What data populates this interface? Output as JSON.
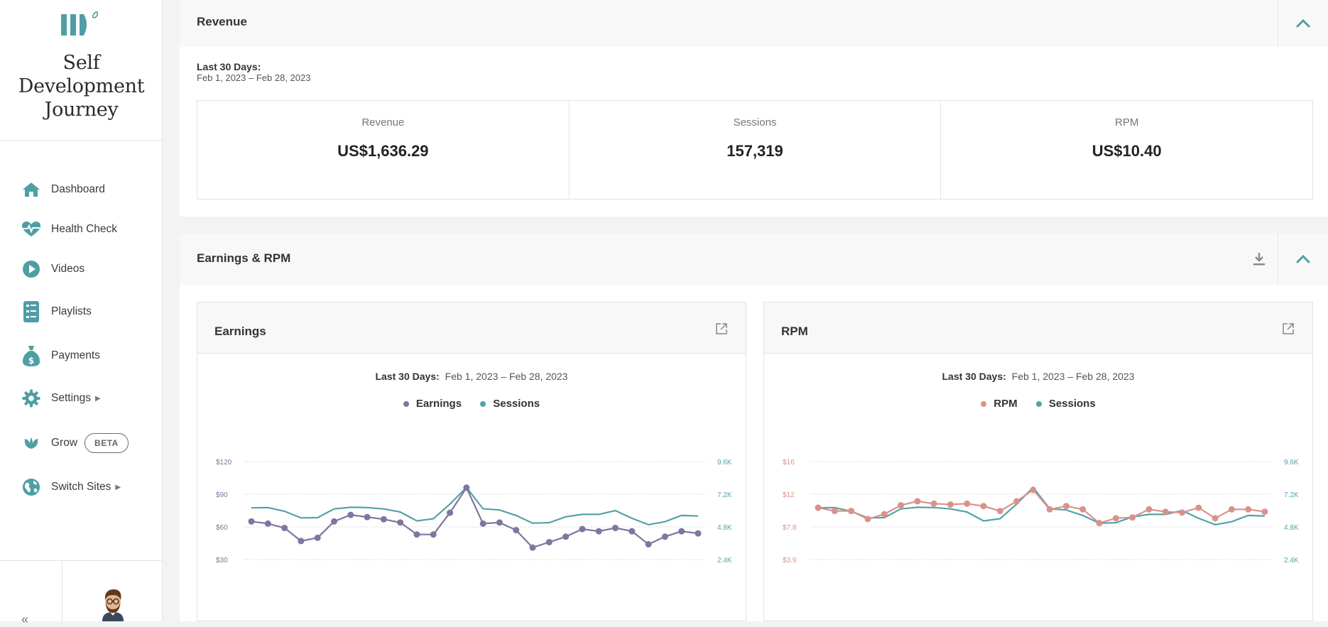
{
  "sidebar": {
    "site_name_lines": [
      "Self",
      "Development",
      "Journey"
    ],
    "nav": [
      {
        "label": "Dashboard",
        "icon": "home-icon"
      },
      {
        "label": "Health Check",
        "icon": "heartbeat-icon"
      },
      {
        "label": "Videos",
        "icon": "play-icon"
      },
      {
        "label": "Playlists",
        "icon": "list-icon"
      },
      {
        "label": "Payments",
        "icon": "money-bag-icon"
      },
      {
        "label": "Settings",
        "icon": "gear-icon",
        "has_arrow": true
      },
      {
        "label": "Grow",
        "icon": "leaf-icon",
        "badge": "BETA"
      },
      {
        "label": "Switch Sites",
        "icon": "globe-icon",
        "has_arrow": true
      }
    ],
    "collapse_glyph": "«"
  },
  "revenue_card": {
    "title": "Revenue",
    "period_label": "Last 30 Days:",
    "period_range": "Feb 1, 2023 – Feb 28, 2023",
    "kpis": [
      {
        "label": "Revenue",
        "value": "US$1,636.29"
      },
      {
        "label": "Sessions",
        "value": "157,319"
      },
      {
        "label": "RPM",
        "value": "US$10.40"
      }
    ]
  },
  "earnings_rpm_card": {
    "title": "Earnings & RPM"
  },
  "colors": {
    "accent": "#4f9ea5",
    "earnings": "#7e75a0",
    "sessions": "#52a3a8",
    "rpm": "#d9928a",
    "grid": "#d8d8d8"
  },
  "chart_data": [
    {
      "type": "line",
      "title": "Earnings",
      "subtitle_label": "Last 30 Days:",
      "subtitle_range": "Feb 1, 2023 – Feb 28, 2023",
      "x_count": 28,
      "left_axis": {
        "ticks": [
          "$120",
          "$90",
          "$60",
          "$30"
        ],
        "tick_values": [
          120,
          90,
          60,
          30
        ],
        "color": "#7e75a0"
      },
      "right_axis": {
        "ticks": [
          "9.6K",
          "7.2K",
          "4.8K",
          "2.4K"
        ],
        "tick_values": [
          9600,
          7200,
          4800,
          2400
        ],
        "color": "#52a3a8"
      },
      "grid": true,
      "series": [
        {
          "name": "Earnings",
          "axis": "left",
          "markers": true,
          "values": [
            65,
            63,
            59,
            47,
            50,
            65,
            71,
            69,
            67,
            64,
            53,
            53,
            73,
            96,
            63,
            64,
            57,
            41,
            46,
            51,
            58,
            56,
            59,
            56,
            44,
            51,
            56,
            54
          ]
        },
        {
          "name": "Sessions",
          "axis": "right",
          "markers": false,
          "values": [
            6200,
            6220,
            5950,
            5460,
            5480,
            6120,
            6240,
            6220,
            6120,
            5890,
            5240,
            5400,
            6480,
            7700,
            6130,
            6040,
            5640,
            5070,
            5110,
            5540,
            5720,
            5720,
            6000,
            5430,
            4960,
            5180,
            5640,
            5600
          ]
        }
      ]
    },
    {
      "type": "line",
      "title": "RPM",
      "subtitle_label": "Last 30 Days:",
      "subtitle_range": "Feb 1, 2023 – Feb 28, 2023",
      "x_count": 28,
      "left_axis": {
        "ticks": [
          "$16",
          "$12",
          "$7.8",
          "$3.9"
        ],
        "tick_values": [
          16,
          12,
          7.8,
          3.9
        ],
        "color": "#d9928a"
      },
      "right_axis": {
        "ticks": [
          "9.6K",
          "7.2K",
          "4.8K",
          "2.4K"
        ],
        "tick_values": [
          9600,
          7200,
          4800,
          2400
        ],
        "color": "#52a3a8"
      },
      "grid": true,
      "series": [
        {
          "name": "RPM",
          "axis": "left",
          "markers": true,
          "values": [
            10.3,
            9.9,
            9.9,
            8.9,
            9.5,
            10.6,
            11.1,
            10.8,
            10.7,
            10.8,
            10.5,
            9.9,
            11.1,
            12.5,
            10.1,
            10.5,
            10.1,
            8.4,
            9.0,
            9.1,
            10.1,
            9.8,
            9.7,
            10.3,
            9.0,
            10.1,
            10.1,
            9.8
          ]
        },
        {
          "name": "Sessions",
          "axis": "right",
          "markers": false,
          "values": [
            6200,
            6220,
            5950,
            5460,
            5480,
            6120,
            6240,
            6220,
            6120,
            5890,
            5240,
            5400,
            6480,
            7700,
            6130,
            6040,
            5640,
            5070,
            5110,
            5540,
            5720,
            5720,
            6000,
            5430,
            4960,
            5180,
            5640,
            5600
          ]
        }
      ]
    }
  ]
}
